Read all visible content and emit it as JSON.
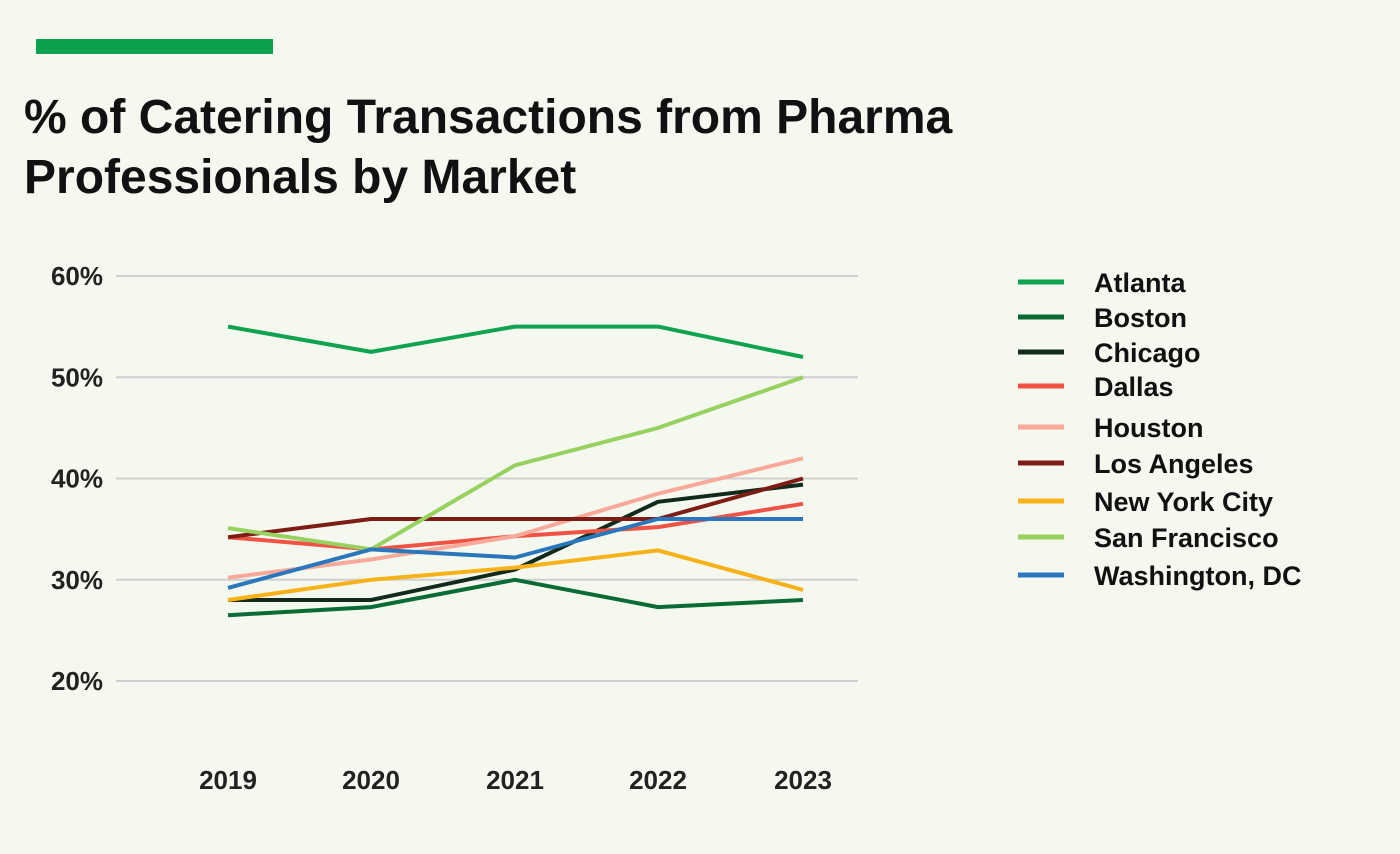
{
  "accent_color": "#0aa14f",
  "chart_data": {
    "type": "line",
    "title": "% of Catering Transactions from Pharma Professionals by Market",
    "xlabel": "",
    "ylabel": "",
    "categories": [
      "2019",
      "2020",
      "2021",
      "2022",
      "2023"
    ],
    "ylim": [
      20,
      60
    ],
    "yticks": [
      20,
      30,
      40,
      50,
      60
    ],
    "ytick_labels": [
      "20%",
      "30%",
      "40%",
      "50%",
      "60%"
    ],
    "grid": true,
    "legend_position": "right",
    "series": [
      {
        "name": "Atlanta",
        "color": "#0fa34f",
        "values": [
          55,
          52.5,
          55,
          55,
          52
        ]
      },
      {
        "name": "Boston",
        "color": "#0b6b34",
        "values": [
          26.5,
          27.3,
          30,
          27.3,
          28
        ]
      },
      {
        "name": "Chicago",
        "color": "#122a1b",
        "values": [
          28,
          28,
          31,
          37.7,
          39.4
        ]
      },
      {
        "name": "Dallas",
        "color": "#f05345",
        "values": [
          34.2,
          33,
          34.3,
          35.2,
          37.5
        ]
      },
      {
        "name": "Houston",
        "color": "#f8a99a",
        "values": [
          30.2,
          32,
          34.3,
          38.5,
          42
        ]
      },
      {
        "name": "Los Angeles",
        "color": "#7e1c16",
        "values": [
          34.2,
          36,
          36,
          36,
          40
        ]
      },
      {
        "name": "New York City",
        "color": "#f7b21a",
        "values": [
          28,
          30,
          31.2,
          32.9,
          29
        ]
      },
      {
        "name": "San Francisco",
        "color": "#97d160",
        "values": [
          35.1,
          33,
          41.3,
          45,
          50
        ]
      },
      {
        "name": "Washington, DC",
        "color": "#2a77bd",
        "values": [
          29.2,
          33,
          32.2,
          36,
          36
        ]
      }
    ]
  }
}
